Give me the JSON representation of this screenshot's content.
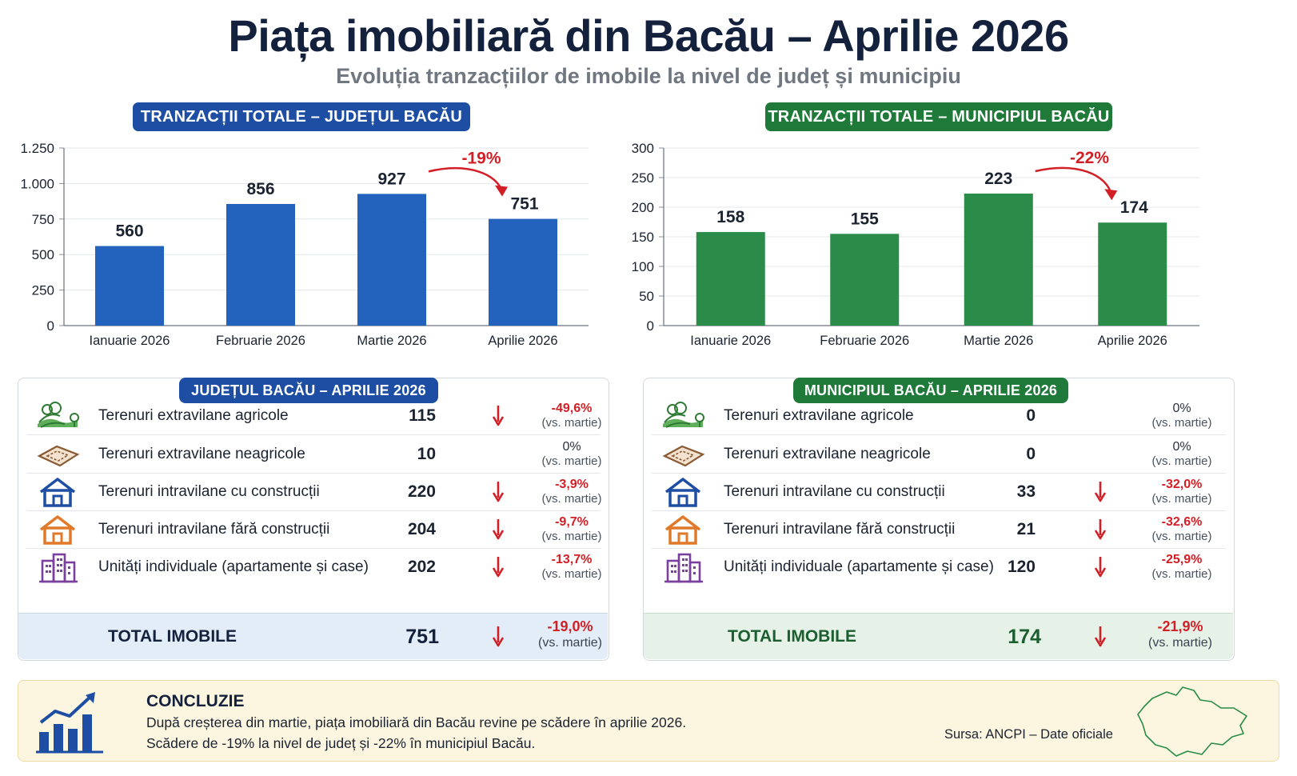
{
  "header": {
    "title": "Piața imobiliară din Bacău – Aprilie 2026",
    "subtitle": "Evoluția tranzacțiilor de imobile la nivel de județ și municipiu"
  },
  "colors": {
    "judet_bar": "#2463bd",
    "municipiu_bar": "#2a8c48",
    "negative": "#d21f26",
    "dark_blue": "#1d4ea3",
    "dark_green": "#1f7a3a"
  },
  "chart_data": [
    {
      "type": "bar",
      "title": "TRANZACȚII TOTALE – JUDEȚUL BACĂU",
      "categories": [
        "Ianuarie 2026",
        "Februarie 2026",
        "Martie 2026",
        "Aprilie 2026"
      ],
      "values": [
        560,
        856,
        927,
        751
      ],
      "value_labels": [
        "560",
        "856",
        "927",
        "751"
      ],
      "ylim": [
        0,
        1250
      ],
      "yticks": [
        0,
        250,
        500,
        750,
        1000,
        1250
      ],
      "ytick_labels": [
        "0",
        "250",
        "500",
        "750",
        "1.000",
        "1.250"
      ],
      "grid": true,
      "color": "#2463bd",
      "annotation": {
        "text": "-19%",
        "from": "Martie 2026",
        "to": "Aprilie 2026"
      }
    },
    {
      "type": "bar",
      "title": "TRANZACȚII TOTALE – MUNICIPIUL BACĂU",
      "categories": [
        "Ianuarie 2026",
        "Februarie 2026",
        "Martie 2026",
        "Aprilie 2026"
      ],
      "values": [
        158,
        155,
        223,
        174
      ],
      "value_labels": [
        "158",
        "155",
        "223",
        "174"
      ],
      "ylim": [
        0,
        300
      ],
      "yticks": [
        0,
        50,
        100,
        150,
        200,
        250,
        300
      ],
      "ytick_labels": [
        "0",
        "50",
        "100",
        "150",
        "200",
        "250",
        "300"
      ],
      "grid": true,
      "color": "#2a8c48",
      "annotation": {
        "text": "-22%",
        "from": "Martie 2026",
        "to": "Aprilie 2026"
      }
    }
  ],
  "judet_table": {
    "title": "JUDEȚUL BACĂU – APRILIE 2026",
    "rows": [
      {
        "icon": "farm-land-icon",
        "label": "Terenuri extravilane agricole",
        "value": "115",
        "change": "-49,6%",
        "trend": "down",
        "note": "(vs. martie)"
      },
      {
        "icon": "land-plot-icon",
        "label": "Terenuri extravilane neagricole",
        "value": "10",
        "change": "0%",
        "trend": "flat",
        "note": "(vs. martie)"
      },
      {
        "icon": "house-icon",
        "label": "Terenuri intravilane cu construcții",
        "value": "220",
        "change": "-3,9%",
        "trend": "down",
        "note": "(vs. martie)"
      },
      {
        "icon": "house-outline-icon",
        "label": "Terenuri intravilane fără construcții",
        "value": "204",
        "change": "-9,7%",
        "trend": "down",
        "note": "(vs. martie)"
      },
      {
        "icon": "apartment-building-icon",
        "label": "Unități individuale (apartamente și case)",
        "value": "202",
        "change": "-13,7%",
        "trend": "down",
        "note": "(vs. martie)"
      }
    ],
    "total": {
      "label": "TOTAL IMOBILE",
      "value": "751",
      "change": "-19,0%",
      "note": "(vs. martie)"
    }
  },
  "municipiu_table": {
    "title": "MUNICIPIUL BACĂU – APRILIE 2026",
    "rows": [
      {
        "icon": "farm-land-icon",
        "label": "Terenuri extravilane agricole",
        "value": "0",
        "change": "0%",
        "trend": "flat",
        "note": "(vs. martie)"
      },
      {
        "icon": "land-plot-icon",
        "label": "Terenuri extravilane neagricole",
        "value": "0",
        "change": "0%",
        "trend": "flat",
        "note": "(vs. martie)"
      },
      {
        "icon": "house-icon",
        "label": "Terenuri intravilane cu construcții",
        "value": "33",
        "change": "-32,0%",
        "trend": "down",
        "note": "(vs. martie)"
      },
      {
        "icon": "house-outline-icon",
        "label": "Terenuri intravilane fără construcții",
        "value": "21",
        "change": "-32,6%",
        "trend": "down",
        "note": "(vs. martie)"
      },
      {
        "icon": "apartment-building-icon",
        "label": "Unități individuale (apartamente și case)",
        "value": "120",
        "change": "-25,9%",
        "trend": "down",
        "note": "(vs. martie)"
      }
    ],
    "total": {
      "label": "TOTAL IMOBILE",
      "value": "174",
      "change": "-21,9%",
      "note": "(vs. martie)"
    }
  },
  "conclusion": {
    "heading": "CONCLUZIE",
    "line1": "După creșterea din martie, piața imobiliară din Bacău revine pe scădere în aprilie 2026.",
    "line2": "Scădere de -19% la nivel de județ și -22% în municipiul Bacău.",
    "source": "Sursa: ANCPI – Date oficiale"
  }
}
